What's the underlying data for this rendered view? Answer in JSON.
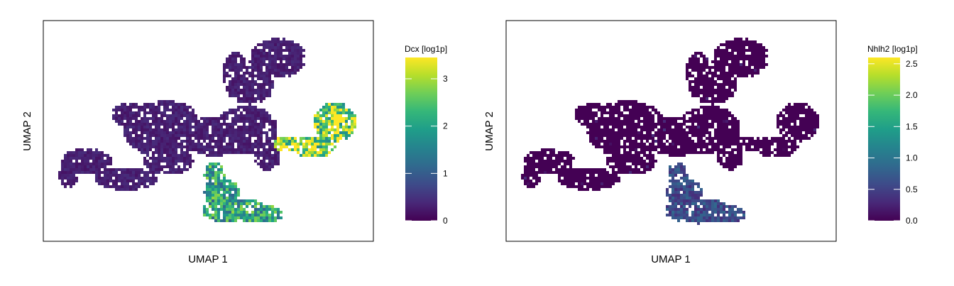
{
  "chart_data": [
    {
      "type": "scatter",
      "subtype": "hexbin-embedding",
      "title": "",
      "xlabel": "UMAP 1",
      "ylabel": "UMAP 2",
      "grid": false,
      "legend_position": "right",
      "legend": {
        "title": "Dcx [log1p]",
        "range": [
          0,
          3.45
        ],
        "ticks": [
          0,
          1,
          2,
          3
        ],
        "tick_labels": [
          "0",
          "1",
          "2",
          "3"
        ],
        "colormap": "viridis"
      },
      "description_values": {
        "bottom_branch_level": 2.0,
        "right_arm_level": 2.9,
        "rest_level": 0.3
      }
    },
    {
      "type": "scatter",
      "subtype": "hexbin-embedding",
      "title": "",
      "xlabel": "UMAP 1",
      "ylabel": "UMAP 2",
      "grid": false,
      "legend_position": "right",
      "legend": {
        "title": "Nhlh2 [log1p]",
        "range": [
          0,
          2.6
        ],
        "ticks": [
          0,
          0.5,
          1,
          1.5,
          2,
          2.5
        ],
        "tick_labels": [
          "0.0",
          "0.5",
          "1.0",
          "1.5",
          "2.0",
          "2.5"
        ],
        "colormap": "viridis"
      },
      "description_values": {
        "bottom_branch_level": 0.6,
        "right_arm_level": 0.0,
        "rest_level": 0.0
      }
    }
  ],
  "colors": {
    "viridis": [
      "#440154",
      "#482878",
      "#3e4a89",
      "#31688e",
      "#26828e",
      "#1f9e89",
      "#35b779",
      "#6ece58",
      "#b5de2b",
      "#fde725"
    ],
    "background": "#ffffff",
    "frame": "#000000"
  }
}
